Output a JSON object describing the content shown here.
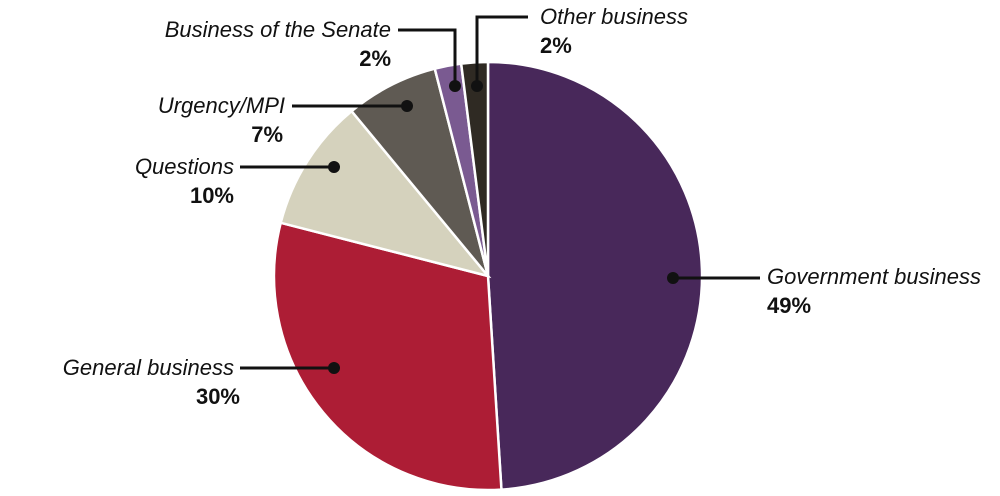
{
  "chart_data": {
    "type": "pie",
    "slices": [
      {
        "label": "Government business",
        "value": 49,
        "value_label": "49%",
        "color": "#48285a"
      },
      {
        "label": "General business",
        "value": 30,
        "value_label": "30%",
        "color": "#ad1d35"
      },
      {
        "label": "Questions",
        "value": 10,
        "value_label": "10%",
        "color": "#d5d2bd"
      },
      {
        "label": "Urgency/MPI",
        "value": 7,
        "value_label": "7%",
        "color": "#5f5a53"
      },
      {
        "label": "Business of the Senate",
        "value": 2,
        "value_label": "2%",
        "color": "#7a5a91"
      },
      {
        "label": "Other business",
        "value": 2,
        "value_label": "2%",
        "color": "#2f2a23"
      }
    ],
    "start": "12 o'clock",
    "direction": "clockwise",
    "legend": "none",
    "label_style": "leader lines"
  }
}
